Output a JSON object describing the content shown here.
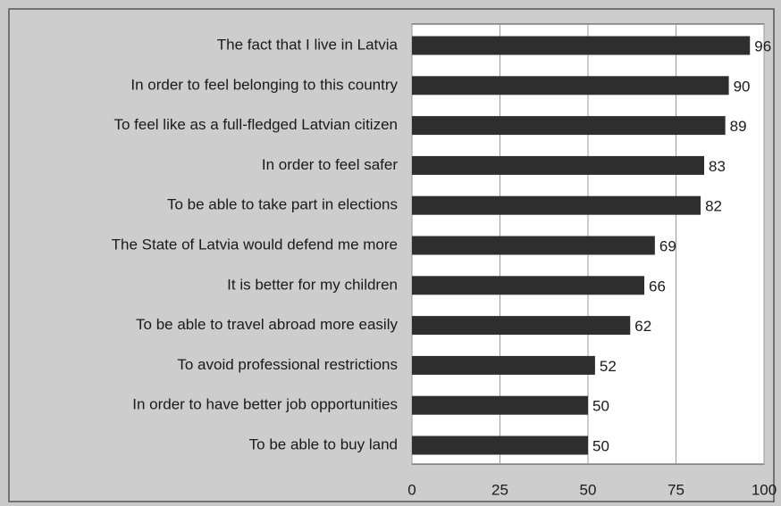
{
  "chart_data": {
    "type": "bar",
    "orientation": "horizontal",
    "categories": [
      "The fact that I live in Latvia",
      "In order to feel belonging to this country",
      "To feel like as a full-fledged Latvian citizen",
      "In order to feel safer",
      "To be able to take part in elections",
      "The State of Latvia would defend me more",
      "It is better for my children",
      "To be able to travel abroad more easily",
      "To avoid professional restrictions",
      "In order to have better job opportunities",
      "To be able to buy land"
    ],
    "values": [
      96,
      90,
      89,
      83,
      82,
      69,
      66,
      62,
      52,
      50,
      50
    ],
    "color": "#2e2e2e",
    "xlim": [
      0,
      100
    ],
    "xticks": [
      0,
      25,
      50,
      75,
      100
    ],
    "grid": true
  }
}
